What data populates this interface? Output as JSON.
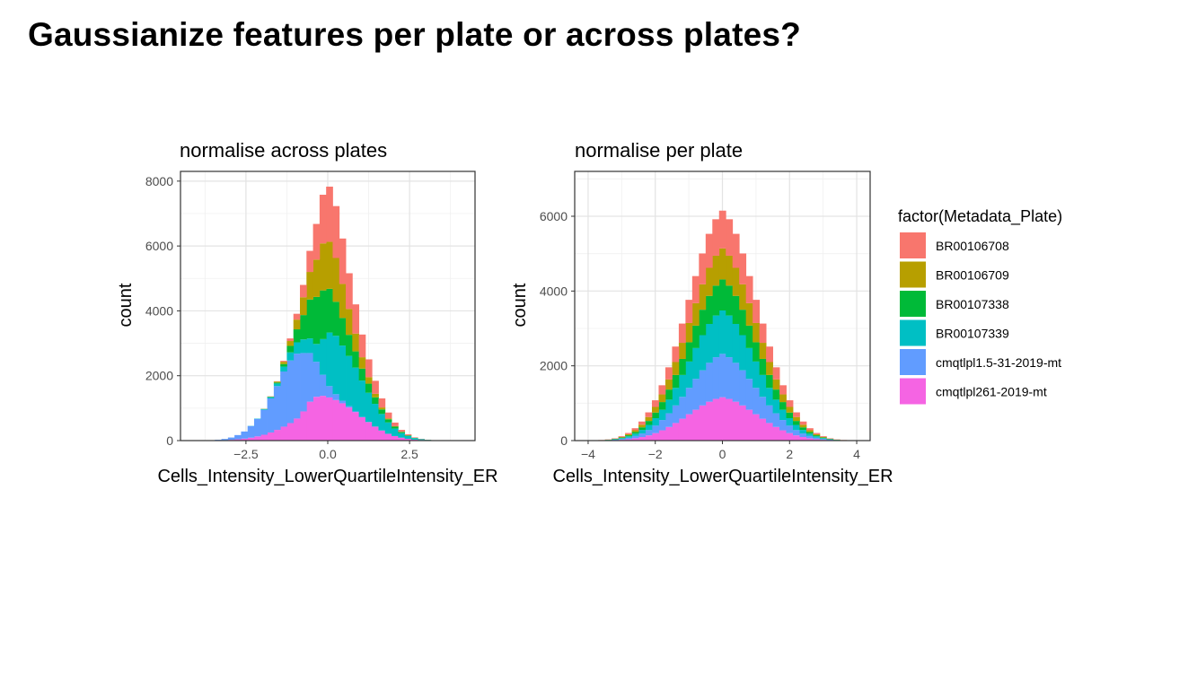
{
  "slide": {
    "title": "Gaussianize features per plate or across plates?"
  },
  "legend": {
    "title": "factor(Metadata_Plate)",
    "entries": [
      {
        "label": "BR00106708",
        "color": "#F8766D"
      },
      {
        "label": "BR00106709",
        "color": "#B79F00"
      },
      {
        "label": "BR00107338",
        "color": "#00BA38"
      },
      {
        "label": "BR00107339",
        "color": "#00BFC4"
      },
      {
        "label": "cmqtlpl1.5-31-2019-mt",
        "color": "#619CFF"
      },
      {
        "label": "cmqtlpl261-2019-mt",
        "color": "#F564E3"
      }
    ]
  },
  "chart_data": [
    {
      "type": "bar",
      "stacked": true,
      "title": "normalise across plates",
      "xlabel": "Cells_Intensity_LowerQuartileIntensity_ER",
      "ylabel": "count",
      "xlim": [
        -4.5,
        4.5
      ],
      "ylim": [
        0,
        8300
      ],
      "x_ticks": [
        -2.5,
        0.0,
        2.5
      ],
      "x_tick_labels": [
        "−2.5",
        "0.0",
        "2.5"
      ],
      "y_ticks": [
        0,
        2000,
        4000,
        6000,
        8000
      ],
      "y_tick_labels": [
        "0",
        "2000",
        "4000",
        "6000",
        "8000"
      ],
      "grid": true,
      "x_bins": [
        -3.55,
        -3.35,
        -3.15,
        -2.95,
        -2.75,
        -2.55,
        -2.35,
        -2.15,
        -1.95,
        -1.75,
        -1.55,
        -1.35,
        -1.15,
        -0.95,
        -0.75,
        -0.55,
        -0.35,
        -0.15,
        0.05,
        0.25,
        0.45,
        0.65,
        0.85,
        1.05,
        1.25,
        1.45,
        1.65,
        1.85,
        2.05,
        2.25,
        2.45,
        2.65,
        2.85,
        3.05,
        3.25,
        3.45,
        3.65
      ],
      "series": [
        {
          "name": "cmqtlpl261-2019-mt",
          "values": [
            5,
            10,
            15,
            25,
            40,
            60,
            90,
            130,
            180,
            250,
            330,
            430,
            540,
            680,
            900,
            1200,
            1350,
            1380,
            1330,
            1250,
            1150,
            1020,
            880,
            720,
            570,
            430,
            310,
            210,
            140,
            90,
            55,
            30,
            18,
            10,
            5,
            3,
            1
          ]
        },
        {
          "name": "cmqtlpl1.5-31-2019-mt",
          "values": [
            5,
            15,
            35,
            70,
            130,
            220,
            360,
            540,
            770,
            1050,
            1350,
            1700,
            1930,
            2000,
            1800,
            1500,
            1080,
            650,
            350,
            180,
            80,
            40,
            20,
            10,
            5,
            3,
            1,
            0,
            0,
            0,
            0,
            0,
            0,
            0,
            0,
            0,
            0
          ]
        },
        {
          "name": "BR00107339",
          "values": [
            0,
            0,
            0,
            0,
            0,
            0,
            5,
            10,
            20,
            40,
            80,
            150,
            250,
            350,
            420,
            450,
            550,
            1100,
            1650,
            1800,
            1700,
            1550,
            1350,
            1120,
            900,
            700,
            510,
            350,
            230,
            140,
            85,
            45,
            25,
            12,
            6,
            3,
            1
          ]
        },
        {
          "name": "BR00107338",
          "values": [
            0,
            0,
            0,
            0,
            0,
            0,
            0,
            0,
            5,
            10,
            30,
            80,
            200,
            400,
            750,
            1200,
            1450,
            1500,
            1350,
            1050,
            850,
            650,
            500,
            370,
            280,
            200,
            140,
            95,
            60,
            35,
            20,
            10,
            5,
            3,
            1,
            0,
            0
          ]
        },
        {
          "name": "BR00106709",
          "values": [
            0,
            0,
            0,
            0,
            0,
            0,
            0,
            0,
            5,
            10,
            30,
            70,
            150,
            300,
            550,
            850,
            1150,
            1450,
            1450,
            1350,
            1050,
            800,
            550,
            350,
            200,
            110,
            60,
            30,
            15,
            6,
            3,
            1,
            0,
            0,
            0,
            0,
            0
          ]
        },
        {
          "name": "BR00106708",
          "values": [
            0,
            0,
            0,
            0,
            0,
            0,
            0,
            0,
            0,
            5,
            10,
            30,
            80,
            180,
            380,
            650,
            1100,
            1500,
            1700,
            1600,
            1400,
            1100,
            900,
            700,
            550,
            400,
            280,
            180,
            110,
            60,
            30,
            15,
            8,
            3,
            1,
            0,
            0
          ]
        }
      ]
    },
    {
      "type": "bar",
      "stacked": true,
      "title": "normalise per plate",
      "xlabel": "Cells_Intensity_LowerQuartileIntensity_ER",
      "ylabel": "count",
      "xlim": [
        -4.4,
        4.4
      ],
      "ylim": [
        0,
        7200
      ],
      "x_ticks": [
        -4,
        -2,
        0,
        2,
        4
      ],
      "x_tick_labels": [
        "−4",
        "−2",
        "0",
        "2",
        "4"
      ],
      "y_ticks": [
        0,
        2000,
        4000,
        6000
      ],
      "y_tick_labels": [
        "0",
        "2000",
        "4000",
        "6000"
      ],
      "grid": true,
      "x_bins": [
        -3.6,
        -3.4,
        -3.2,
        -3.0,
        -2.8,
        -2.6,
        -2.4,
        -2.2,
        -2.0,
        -1.8,
        -1.6,
        -1.4,
        -1.2,
        -1.0,
        -0.8,
        -0.6,
        -0.4,
        -0.2,
        0.0,
        0.2,
        0.4,
        0.6,
        0.8,
        1.0,
        1.2,
        1.4,
        1.6,
        1.8,
        2.0,
        2.2,
        2.4,
        2.6,
        2.8,
        3.0,
        3.2,
        3.4,
        3.6
      ],
      "series": [
        {
          "name": "cmqtlpl261-2019-mt",
          "values": [
            3,
            6,
            12,
            22,
            38,
            62,
            95,
            140,
            200,
            275,
            365,
            470,
            585,
            705,
            825,
            940,
            1040,
            1115,
            1160,
            1115,
            1040,
            940,
            825,
            705,
            585,
            470,
            365,
            275,
            200,
            140,
            95,
            62,
            38,
            22,
            12,
            6,
            3
          ]
        },
        {
          "name": "cmqtlpl1.5-31-2019-mt",
          "values": [
            3,
            6,
            12,
            22,
            38,
            62,
            95,
            140,
            200,
            275,
            365,
            470,
            585,
            705,
            825,
            940,
            1040,
            1115,
            1160,
            1115,
            1040,
            940,
            825,
            705,
            585,
            470,
            365,
            275,
            200,
            140,
            95,
            62,
            38,
            22,
            12,
            6,
            3
          ]
        },
        {
          "name": "BR00107339",
          "values": [
            3,
            6,
            12,
            22,
            38,
            62,
            95,
            140,
            200,
            275,
            365,
            470,
            585,
            705,
            825,
            940,
            1040,
            1115,
            1160,
            1115,
            1040,
            940,
            825,
            705,
            585,
            470,
            365,
            275,
            200,
            140,
            95,
            62,
            38,
            22,
            12,
            6,
            3
          ]
        },
        {
          "name": "BR00107338",
          "values": [
            2,
            4,
            8,
            16,
            28,
            45,
            70,
            105,
            150,
            205,
            270,
            345,
            430,
            515,
            600,
            680,
            750,
            800,
            830,
            800,
            750,
            680,
            600,
            515,
            430,
            345,
            270,
            205,
            150,
            105,
            70,
            45,
            28,
            16,
            8,
            4,
            2
          ]
        },
        {
          "name": "BR00106709",
          "values": [
            2,
            4,
            8,
            16,
            28,
            45,
            70,
            105,
            150,
            205,
            270,
            345,
            430,
            515,
            600,
            680,
            750,
            800,
            830,
            800,
            750,
            680,
            600,
            515,
            430,
            345,
            270,
            205,
            150,
            105,
            70,
            45,
            28,
            16,
            8,
            4,
            2
          ]
        },
        {
          "name": "BR00106708",
          "values": [
            3,
            6,
            11,
            20,
            34,
            55,
            85,
            125,
            178,
            245,
            325,
            415,
            515,
            620,
            725,
            825,
            910,
            975,
            1010,
            975,
            910,
            825,
            725,
            620,
            515,
            415,
            325,
            245,
            178,
            125,
            85,
            55,
            34,
            20,
            11,
            6,
            3
          ]
        }
      ]
    }
  ]
}
